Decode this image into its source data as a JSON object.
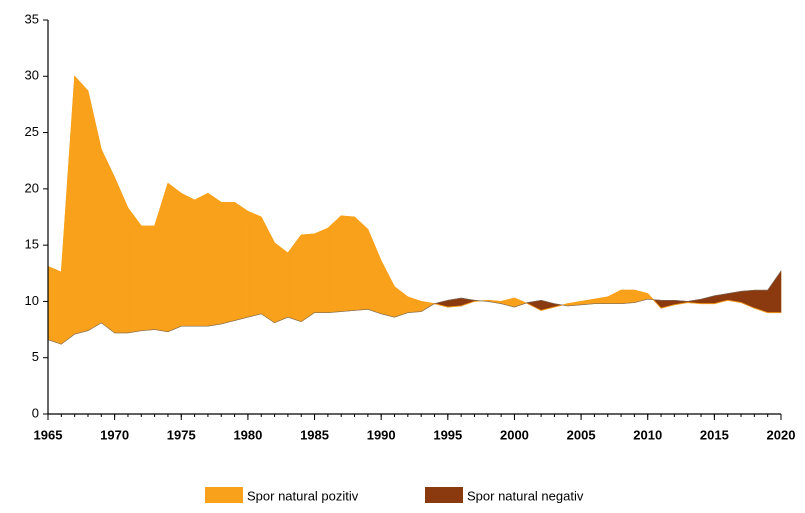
{
  "chart_data": {
    "type": "area_between",
    "x": [
      1965,
      1966,
      1967,
      1968,
      1969,
      1970,
      1971,
      1972,
      1973,
      1974,
      1975,
      1976,
      1977,
      1978,
      1979,
      1980,
      1981,
      1982,
      1983,
      1984,
      1985,
      1986,
      1987,
      1988,
      1989,
      1990,
      1991,
      1992,
      1993,
      1994,
      1995,
      1996,
      1997,
      1998,
      1999,
      2000,
      2001,
      2002,
      2003,
      2004,
      2005,
      2006,
      2007,
      2008,
      2009,
      2010,
      2011,
      2012,
      2013,
      2014,
      2015,
      2016,
      2017,
      2018,
      2019,
      2020
    ],
    "series": [
      {
        "values": [
          13.1,
          12.6,
          30.0,
          28.7,
          23.5,
          21.0,
          18.3,
          16.7,
          16.7,
          20.5,
          19.6,
          19.0,
          19.6,
          18.8,
          18.8,
          18.0,
          17.5,
          15.2,
          14.3,
          15.9,
          16.0,
          16.5,
          17.6,
          17.5,
          16.4,
          13.6,
          11.3,
          10.4,
          10.0,
          9.8,
          9.5,
          9.6,
          10.0,
          10.1,
          10.0,
          10.3,
          9.8,
          9.2,
          9.5,
          9.8,
          10.0,
          10.2,
          10.4,
          11.0,
          11.0,
          10.7,
          9.4,
          9.7,
          9.9,
          9.8,
          9.8,
          10.1,
          9.9,
          9.4,
          9.0,
          9.0
        ]
      },
      {
        "values": [
          6.6,
          6.2,
          7.1,
          7.4,
          8.1,
          7.2,
          7.2,
          7.4,
          7.5,
          7.3,
          7.8,
          7.8,
          7.8,
          8.0,
          8.3,
          8.6,
          8.9,
          8.1,
          8.6,
          8.2,
          9.0,
          9.0,
          9.1,
          9.2,
          9.3,
          8.9,
          8.6,
          9.0,
          9.1,
          9.8,
          10.1,
          10.3,
          10.1,
          10.0,
          9.8,
          9.5,
          9.9,
          10.1,
          9.8,
          9.6,
          9.7,
          9.8,
          9.8,
          9.8,
          9.9,
          10.2,
          10.1,
          10.1,
          10.0,
          10.2,
          10.5,
          10.7,
          10.9,
          11.0,
          11.0,
          12.7
        ]
      }
    ],
    "fills": [
      {
        "name": "Spor natural pozitiv",
        "color": "#F9A11B"
      },
      {
        "name": "Spor natural negativ",
        "color": "#8B3A0F"
      }
    ],
    "xlim": [
      1965,
      2020
    ],
    "xticks": [
      1965,
      1970,
      1975,
      1980,
      1985,
      1990,
      1995,
      2000,
      2005,
      2010,
      2015,
      2020
    ],
    "ylim": [
      0,
      35
    ],
    "yticks": [
      0,
      5,
      10,
      15,
      20,
      25,
      30,
      35
    ]
  }
}
